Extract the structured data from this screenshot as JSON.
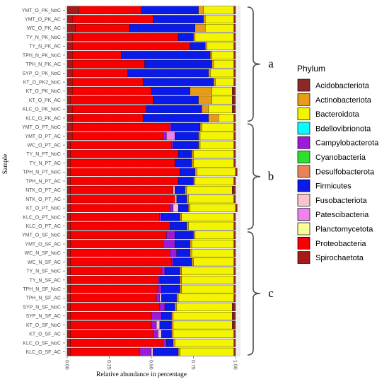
{
  "chart_data": {
    "type": "bar",
    "orientation": "horizontal",
    "stacked": true,
    "xlabel": "Relative abundance in percentage",
    "ylabel": "Sample",
    "xlim": [
      0,
      1
    ],
    "xticks": [
      "0.00",
      "0.25",
      "0.50",
      "0.75",
      "1.00"
    ],
    "grid": true,
    "legend_title": "Phylum",
    "legend_position": "right",
    "categories": [
      "YMT_O_PK_NoC",
      "YMT_O_PK_AC",
      "WC_O_PK_AC",
      "TY_N_PK_NoC",
      "TY_N_PK_AC",
      "TPH_N_PK_NoC",
      "TPH_N_PK_AC",
      "SYP_O_PK_NoC",
      "KT_O_PK2_NoC",
      "KT_O_PK_NoC",
      "KT_O_PK_AC",
      "KLC_O_PK_NoC",
      "KLC_O_PK_AC",
      "YMT_O_PT_NoC",
      "YMT_O_PT_AC",
      "WC_O_PT_AC",
      "TY_N_PT_NoC",
      "TY_N_PT_AC",
      "TPH_N_PT_NoC",
      "TPH_N_PT_AC",
      "NTK_O_PT_AC",
      "NTK_O_PT_AC",
      "KT_O_PT_NoC",
      "KLC_O_PT_NoC",
      "KLC_O_PT_AC",
      "YMT_O_SF_NoC",
      "YMT_O_SF_AC",
      "WC_N_SF_NoC",
      "WC_N_SF_AC",
      "TY_N_SF_NoC",
      "TY_N_SF_AC",
      "TPH_N_SF_NoC",
      "TPH_N_SF_AC",
      "SYP_N_SF_NoC",
      "SYP_N_SF_AC",
      "KT_O_SF_NoC",
      "KT_O_SF_AC",
      "KLC_O_SF_NoC",
      "KLC_O_SF_AC"
    ],
    "series": [
      {
        "name": "Acidobacteriota",
        "color": "#8B2A24",
        "values": [
          0.01,
          0.01,
          0.01,
          0.01,
          0.01,
          0.01,
          0.01,
          0.01,
          0.01,
          0.01,
          0.01,
          0.01,
          0.01,
          0.01,
          0.01,
          0.01,
          0.01,
          0.01,
          0.01,
          0.01,
          0.01,
          0.01,
          0.01,
          0.01,
          0.01,
          0.01,
          0.01,
          0.01,
          0.01,
          0.01,
          0.01,
          0.01,
          0.01,
          0.01,
          0.01,
          0.01,
          0.01,
          0.01,
          0.01
        ]
      },
      {
        "name": "Actinobacteriota",
        "color": "#E89B18",
        "values": [
          0.03,
          0.01,
          0.06,
          0.01,
          0.01,
          0.01,
          0.01,
          0.01,
          0.01,
          0.13,
          0.08,
          0.04,
          0.06,
          0.01,
          0.01,
          0.01,
          0.01,
          0.01,
          0.01,
          0.01,
          0.01,
          0.01,
          0.01,
          0.01,
          0.01,
          0.01,
          0.01,
          0.01,
          0.01,
          0.01,
          0.01,
          0.01,
          0.01,
          0.01,
          0.01,
          0.01,
          0.01,
          0.01,
          0.01
        ]
      },
      {
        "name": "Bacteroidota",
        "color": "#F4F400",
        "values": [
          0.18,
          0.17,
          0.17,
          0.23,
          0.16,
          0.13,
          0.12,
          0.14,
          0.11,
          0.12,
          0.12,
          0.14,
          0.09,
          0.19,
          0.2,
          0.2,
          0.24,
          0.24,
          0.23,
          0.23,
          0.27,
          0.27,
          0.27,
          0.31,
          0.27,
          0.23,
          0.25,
          0.25,
          0.24,
          0.31,
          0.31,
          0.31,
          0.33,
          0.33,
          0.35,
          0.35,
          0.36,
          0.35,
          0.32
        ]
      },
      {
        "name": "Bdellovibrionota",
        "color": "#00FFFF",
        "values": [
          0.0,
          0.0,
          0.0,
          0.0,
          0.0,
          0.0,
          0.0,
          0.0,
          0.0,
          0.0,
          0.0,
          0.0,
          0.0,
          0.0,
          0.0,
          0.0,
          0.0,
          0.0,
          0.0,
          0.0,
          0.0,
          0.0,
          0.0,
          0.0,
          0.0,
          0.0,
          0.0,
          0.0,
          0.0,
          0.0,
          0.0,
          0.0,
          0.0,
          0.0,
          0.0,
          0.0,
          0.0,
          0.0,
          0.0
        ]
      },
      {
        "name": "Campylobacterota",
        "color": "#9B1BD9",
        "values": [
          0.0,
          0.0,
          0.0,
          0.0,
          0.0,
          0.0,
          0.0,
          0.0,
          0.0,
          0.0,
          0.0,
          0.0,
          0.0,
          0.01,
          0.02,
          0.01,
          0.0,
          0.0,
          0.0,
          0.0,
          0.0,
          0.0,
          0.02,
          0.01,
          0.0,
          0.05,
          0.07,
          0.04,
          0.01,
          0.02,
          0.01,
          0.02,
          0.02,
          0.03,
          0.06,
          0.03,
          0.03,
          0.02,
          0.07
        ]
      },
      {
        "name": "Cyanobacteria",
        "color": "#2EE02E",
        "values": [
          0.0,
          0.0,
          0.0,
          0.0,
          0.0,
          0.0,
          0.0,
          0.0,
          0.0,
          0.0,
          0.0,
          0.0,
          0.0,
          0.0,
          0.0,
          0.0,
          0.0,
          0.0,
          0.0,
          0.0,
          0.0,
          0.0,
          0.0,
          0.0,
          0.0,
          0.0,
          0.0,
          0.0,
          0.0,
          0.0,
          0.0,
          0.0,
          0.0,
          0.0,
          0.0,
          0.0,
          0.0,
          0.0,
          0.0
        ]
      },
      {
        "name": "Desulfobacterota",
        "color": "#E8825A",
        "values": [
          0.0,
          0.0,
          0.0,
          0.0,
          0.0,
          0.0,
          0.0,
          0.0,
          0.0,
          0.0,
          0.0,
          0.0,
          0.0,
          0.0,
          0.0,
          0.0,
          0.0,
          0.0,
          0.0,
          0.0,
          0.0,
          0.0,
          0.0,
          0.0,
          0.0,
          0.0,
          0.0,
          0.0,
          0.0,
          0.0,
          0.0,
          0.0,
          0.0,
          0.0,
          0.0,
          0.0,
          0.0,
          0.0,
          0.0
        ]
      },
      {
        "name": "Firmicutes",
        "color": "#0A1AE8",
        "values": [
          0.34,
          0.3,
          0.39,
          0.09,
          0.09,
          0.53,
          0.4,
          0.48,
          0.42,
          0.23,
          0.27,
          0.33,
          0.39,
          0.17,
          0.14,
          0.15,
          0.08,
          0.1,
          0.09,
          0.09,
          0.06,
          0.06,
          0.06,
          0.11,
          0.1,
          0.11,
          0.09,
          0.08,
          0.11,
          0.09,
          0.12,
          0.11,
          0.09,
          0.06,
          0.06,
          0.07,
          0.06,
          0.04,
          0.15
        ]
      },
      {
        "name": "Fusobacteriota",
        "color": "#FAC4C8",
        "values": [
          0.0,
          0.0,
          0.0,
          0.0,
          0.0,
          0.0,
          0.0,
          0.0,
          0.0,
          0.0,
          0.0,
          0.0,
          0.0,
          0.0,
          0.0,
          0.0,
          0.0,
          0.0,
          0.0,
          0.0,
          0.01,
          0.01,
          0.03,
          0.0,
          0.0,
          0.0,
          0.0,
          0.0,
          0.0,
          0.0,
          0.0,
          0.0,
          0.01,
          0.0,
          0.0,
          0.02,
          0.02,
          0.0,
          0.01
        ]
      },
      {
        "name": "Patescibacteria",
        "color": "#EE82EE",
        "values": [
          0.0,
          0.0,
          0.0,
          0.0,
          0.0,
          0.0,
          0.0,
          0.0,
          0.0,
          0.0,
          0.0,
          0.0,
          0.0,
          0.0,
          0.05,
          0.0,
          0.0,
          0.0,
          0.0,
          0.0,
          0.0,
          0.0,
          0.0,
          0.0,
          0.0,
          0.0,
          0.0,
          0.0,
          0.0,
          0.0,
          0.0,
          0.0,
          0.0,
          0.0,
          0.0,
          0.0,
          0.0,
          0.0,
          0.0
        ]
      },
      {
        "name": "Planctomycetota",
        "color": "#FFFF99",
        "values": [
          0.0,
          0.0,
          0.0,
          0.0,
          0.0,
          0.0,
          0.0,
          0.0,
          0.0,
          0.0,
          0.0,
          0.0,
          0.0,
          0.0,
          0.0,
          0.0,
          0.0,
          0.0,
          0.0,
          0.0,
          0.0,
          0.0,
          0.0,
          0.0,
          0.0,
          0.0,
          0.0,
          0.0,
          0.0,
          0.0,
          0.0,
          0.0,
          0.0,
          0.0,
          0.0,
          0.0,
          0.0,
          0.0,
          0.0
        ]
      },
      {
        "name": "Proteobacteria",
        "color": "#F80000",
        "values": [
          0.37,
          0.48,
          0.32,
          0.63,
          0.7,
          0.29,
          0.43,
          0.33,
          0.42,
          0.47,
          0.49,
          0.44,
          0.42,
          0.58,
          0.54,
          0.6,
          0.64,
          0.62,
          0.65,
          0.64,
          0.61,
          0.62,
          0.59,
          0.53,
          0.59,
          0.57,
          0.55,
          0.59,
          0.6,
          0.54,
          0.52,
          0.52,
          0.51,
          0.53,
          0.48,
          0.48,
          0.49,
          0.55,
          0.41
        ]
      },
      {
        "name": "Spirochaetota",
        "color": "#A61A1A",
        "values": [
          0.07,
          0.03,
          0.05,
          0.03,
          0.03,
          0.03,
          0.03,
          0.03,
          0.03,
          0.03,
          0.02,
          0.03,
          0.03,
          0.03,
          0.03,
          0.02,
          0.02,
          0.02,
          0.02,
          0.02,
          0.02,
          0.02,
          0.02,
          0.02,
          0.02,
          0.02,
          0.02,
          0.02,
          0.02,
          0.02,
          0.02,
          0.02,
          0.02,
          0.02,
          0.02,
          0.02,
          0.02,
          0.02,
          0.02
        ]
      }
    ],
    "stack_order": [
      "Spirochaetota",
      "Proteobacteria",
      "Campylobacterota",
      "Fusobacteriota",
      "Patescibacteria",
      "Firmicutes",
      "Actinobacteriota",
      "Bacteroidota",
      "Acidobacteriota"
    ],
    "groups": [
      {
        "label": "a",
        "from": 0,
        "to": 12
      },
      {
        "label": "b",
        "from": 13,
        "to": 24
      },
      {
        "label": "c",
        "from": 25,
        "to": 38
      }
    ]
  }
}
